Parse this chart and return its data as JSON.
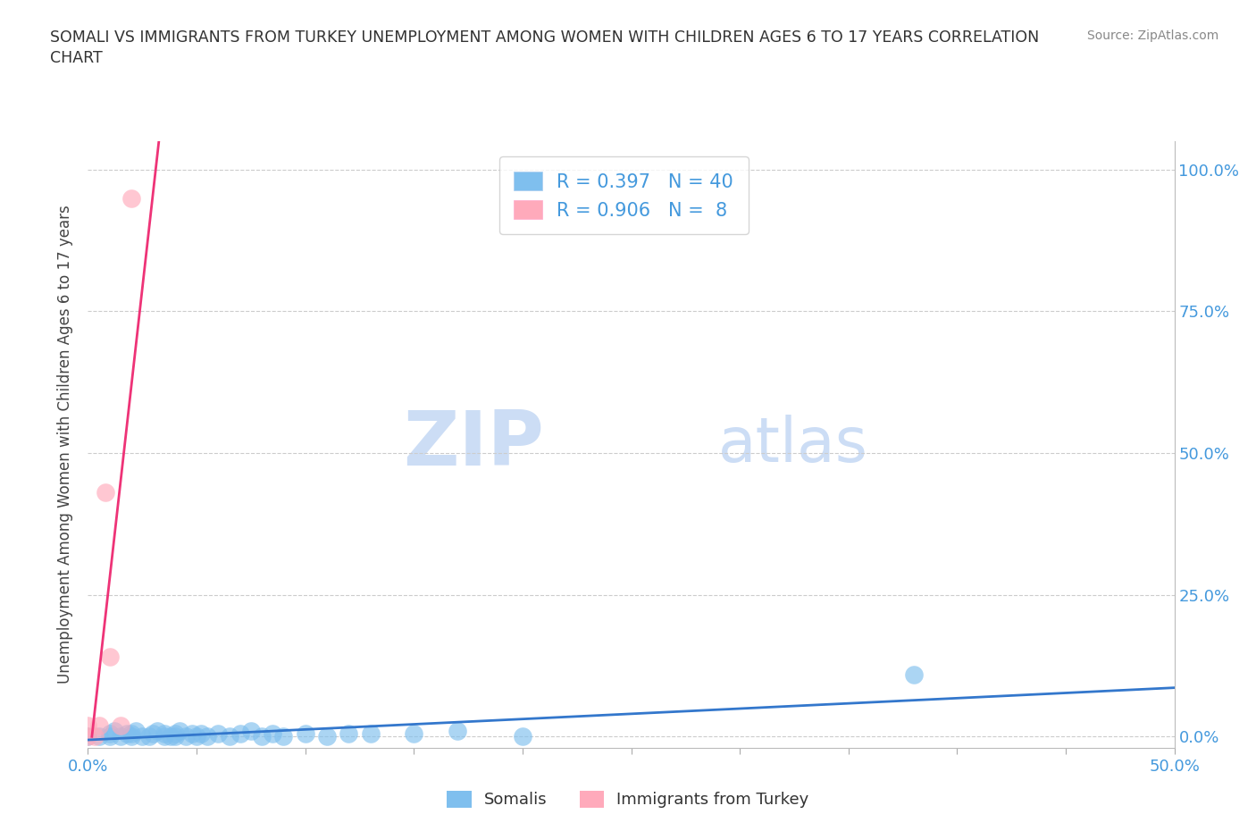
{
  "title_line1": "SOMALI VS IMMIGRANTS FROM TURKEY UNEMPLOYMENT AMONG WOMEN WITH CHILDREN AGES 6 TO 17 YEARS CORRELATION",
  "title_line2": "CHART",
  "source": "Source: ZipAtlas.com",
  "ylabel": "Unemployment Among Women with Children Ages 6 to 17 years",
  "xlim": [
    0.0,
    0.5
  ],
  "ylim": [
    -0.02,
    1.05
  ],
  "xticks": [
    0.0,
    0.05,
    0.1,
    0.15,
    0.2,
    0.25,
    0.3,
    0.35,
    0.4,
    0.45,
    0.5
  ],
  "xtick_labels_show": [
    "0.0%",
    "",
    "",
    "",
    "",
    "",
    "",
    "",
    "",
    "",
    "50.0%"
  ],
  "yticks": [
    0.0,
    0.25,
    0.5,
    0.75,
    1.0
  ],
  "ytick_labels": [
    "0.0%",
    "25.0%",
    "50.0%",
    "75.0%",
    "100.0%"
  ],
  "somali_R": 0.397,
  "somali_N": 40,
  "turkey_R": 0.906,
  "turkey_N": 8,
  "somali_color": "#7fbfee",
  "turkey_color": "#ffaabb",
  "somali_line_color": "#3377cc",
  "turkey_line_color": "#ee3377",
  "watermark_ZIP": "ZIP",
  "watermark_atlas": "atlas",
  "watermark_color": "#ccddf5",
  "somali_x": [
    0.0,
    0.005,
    0.01,
    0.01,
    0.012,
    0.015,
    0.018,
    0.02,
    0.02,
    0.022,
    0.025,
    0.028,
    0.03,
    0.032,
    0.035,
    0.035,
    0.038,
    0.04,
    0.04,
    0.042,
    0.045,
    0.048,
    0.05,
    0.052,
    0.055,
    0.06,
    0.065,
    0.07,
    0.075,
    0.08,
    0.085,
    0.09,
    0.1,
    0.11,
    0.12,
    0.13,
    0.15,
    0.17,
    0.2,
    0.38
  ],
  "somali_y": [
    0.0,
    0.0,
    0.0,
    0.005,
    0.01,
    0.0,
    0.005,
    0.0,
    0.005,
    0.01,
    0.0,
    0.0,
    0.005,
    0.01,
    0.0,
    0.005,
    0.0,
    0.0,
    0.005,
    0.01,
    0.0,
    0.005,
    0.0,
    0.005,
    0.0,
    0.005,
    0.0,
    0.005,
    0.01,
    0.0,
    0.005,
    0.0,
    0.005,
    0.0,
    0.005,
    0.005,
    0.005,
    0.01,
    0.0,
    0.11
  ],
  "turkey_x": [
    0.0,
    0.0,
    0.003,
    0.005,
    0.008,
    0.01,
    0.015,
    0.02
  ],
  "turkey_y": [
    0.0,
    0.02,
    0.0,
    0.02,
    0.43,
    0.14,
    0.02,
    0.95
  ],
  "somali_line_x": [
    0.0,
    0.5
  ],
  "turkey_line_xlim": [
    -0.005,
    0.04
  ],
  "background_color": "#ffffff",
  "grid_color": "#cccccc",
  "title_color": "#333333",
  "axis_label_color": "#444444",
  "tick_label_color": "#4499dd",
  "legend_label_color": "#4499dd"
}
